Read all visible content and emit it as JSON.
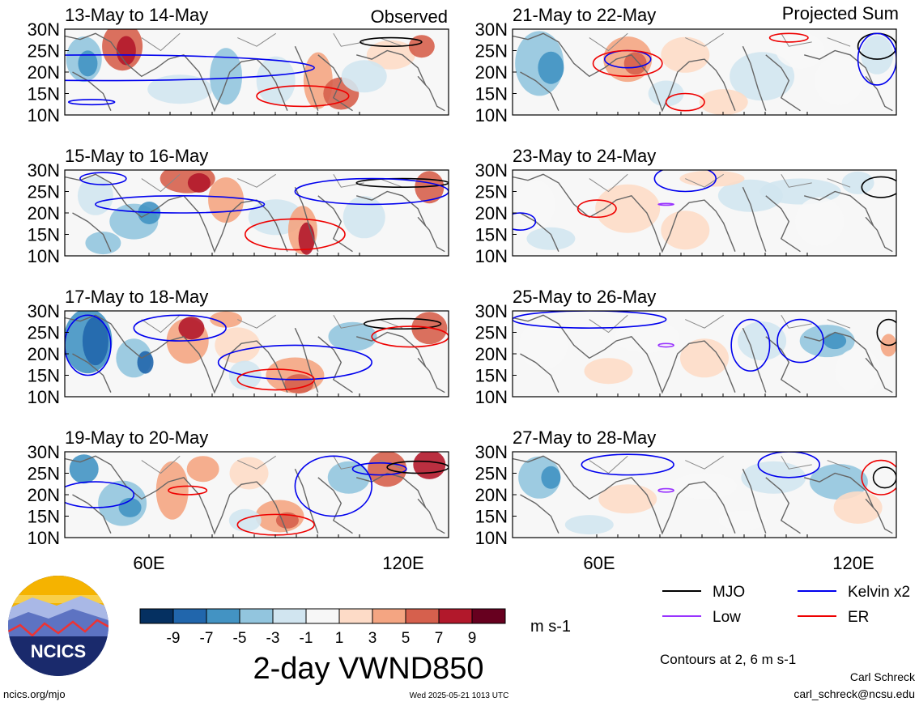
{
  "figure": {
    "title": "2-day VWND850",
    "units": "m s-1",
    "contour_note": "Contours at 2, 6 m s-1",
    "author": "Carl Schreck",
    "email": "carl_schreck@ncsu.edu",
    "url": "ncics.org/mjo",
    "timestamp": "Wed 2025-05-21 1013 UTC",
    "logo_text": "NCICS"
  },
  "columns": {
    "left": "Observed",
    "right": "Projected Sum"
  },
  "panels": [
    {
      "title": "13-May to 14-May",
      "column": "left",
      "row": 0
    },
    {
      "title": "15-May to 16-May",
      "column": "left",
      "row": 1
    },
    {
      "title": "17-May to 18-May",
      "column": "left",
      "row": 2
    },
    {
      "title": "19-May to 20-May",
      "column": "left",
      "row": 3
    },
    {
      "title": "21-May to 22-May",
      "column": "right",
      "row": 0
    },
    {
      "title": "23-May to 24-May",
      "column": "right",
      "row": 1
    },
    {
      "title": "25-May to 26-May",
      "column": "right",
      "row": 2
    },
    {
      "title": "27-May to 28-May",
      "column": "right",
      "row": 3
    }
  ],
  "lat_ticks": [
    "30N",
    "25N",
    "20N",
    "15N",
    "10N"
  ],
  "lon_ticks": [
    "60E",
    "120E"
  ],
  "colorbar": {
    "labels": [
      "-9",
      "-7",
      "-5",
      "-3",
      "-1",
      "1",
      "3",
      "5",
      "7",
      "9"
    ],
    "colors": [
      "#053061",
      "#2166ac",
      "#4393c3",
      "#92c5de",
      "#d1e5f0",
      "#f7f7f7",
      "#fddbc7",
      "#f4a582",
      "#d6604d",
      "#b2182b",
      "#67001f"
    ]
  },
  "legend": [
    {
      "label": "MJO",
      "color": "#000000"
    },
    {
      "label": "Kelvin x2",
      "color": "#0000ee"
    },
    {
      "label": "Low",
      "color": "#9933ff"
    },
    {
      "label": "ER",
      "color": "#ee0000"
    }
  ]
}
